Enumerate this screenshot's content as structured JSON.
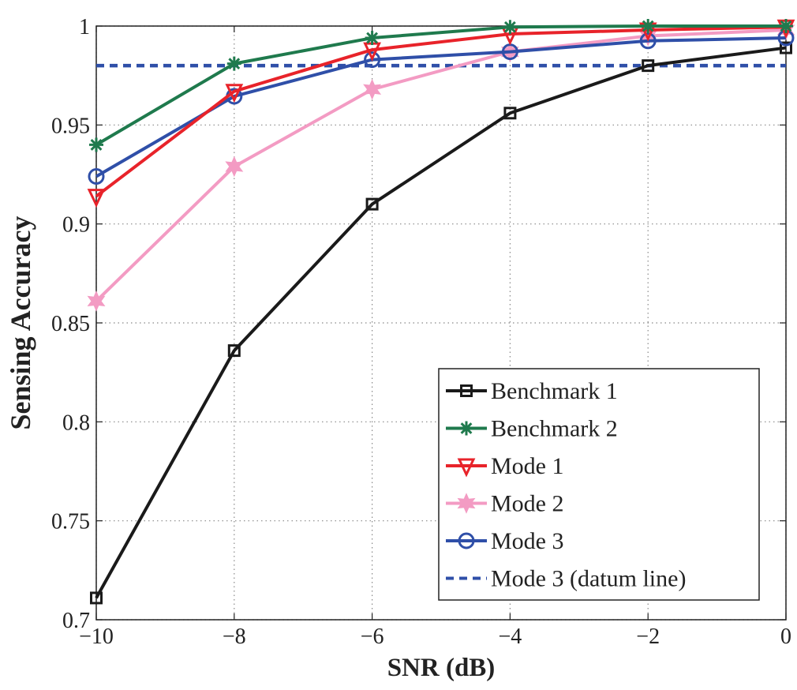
{
  "chart_data": {
    "type": "line",
    "title": "",
    "xlabel": "SNR (dB)",
    "ylabel": "Sensing Accuracy",
    "xlim": [
      -10,
      0
    ],
    "ylim": [
      0.7,
      1
    ],
    "x_ticks": [
      -10,
      -8,
      -6,
      -4,
      -2,
      0
    ],
    "x_tick_labels": [
      "−10",
      "−8",
      "−6",
      "−4",
      "−2",
      "0"
    ],
    "y_ticks": [
      0.7,
      0.75,
      0.8,
      0.85,
      0.9,
      0.95,
      1
    ],
    "y_tick_labels": [
      "0.7",
      "0.75",
      "0.8",
      "0.85",
      "0.9",
      "0.95",
      "1"
    ],
    "grid": true,
    "legend_position": "bottom-right",
    "x": [
      -10,
      -8,
      -6,
      -4,
      -2,
      0
    ],
    "series": [
      {
        "name": "Benchmark 1",
        "color": "#1a1a1a",
        "marker": "square",
        "linestyle": "solid",
        "values": [
          0.711,
          0.836,
          0.91,
          0.956,
          0.98,
          0.989
        ]
      },
      {
        "name": "Benchmark 2",
        "color": "#1f7a4d",
        "marker": "asterisk",
        "linestyle": "solid",
        "values": [
          0.94,
          0.981,
          0.994,
          0.9995,
          1.0,
          1.0
        ]
      },
      {
        "name": "Mode 1",
        "color": "#e8232a",
        "marker": "triangle-down",
        "linestyle": "solid",
        "values": [
          0.914,
          0.967,
          0.988,
          0.996,
          0.998,
          0.9995
        ]
      },
      {
        "name": "Mode 2",
        "color": "#f39bc3",
        "marker": "hexagram",
        "linestyle": "solid",
        "values": [
          0.861,
          0.929,
          0.968,
          0.987,
          0.995,
          0.998
        ]
      },
      {
        "name": "Mode 3",
        "color": "#2f4fa8",
        "marker": "circle",
        "linestyle": "solid",
        "values": [
          0.924,
          0.9645,
          0.983,
          0.987,
          0.9925,
          0.994
        ]
      },
      {
        "name": "Mode 3 (datum line)",
        "color": "#2f4fa8",
        "marker": "none",
        "linestyle": "dashed",
        "values": [
          0.98,
          0.98,
          0.98,
          0.98,
          0.98,
          0.98
        ]
      }
    ]
  }
}
